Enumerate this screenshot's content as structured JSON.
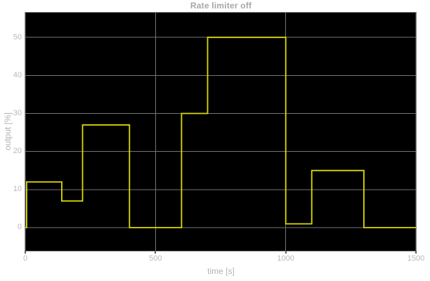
{
  "chart_data": {
    "type": "line",
    "line_style": "step-post",
    "title": "Rate limiter off",
    "xlabel": "time [s]",
    "ylabel": "output [%]",
    "xlim": [
      0,
      1500
    ],
    "ylim": [
      -6.1,
      56.5
    ],
    "xticks": [
      0,
      500,
      1000,
      1500
    ],
    "yticks": [
      0,
      10,
      20,
      30,
      40,
      50
    ],
    "grid": true,
    "legend": "none",
    "series": [
      {
        "name": "output",
        "color": "#dcdc00",
        "steps": [
          {
            "t": 0,
            "v": 0
          },
          {
            "t": 5,
            "v": 12
          },
          {
            "t": 140,
            "v": 7
          },
          {
            "t": 220,
            "v": 27
          },
          {
            "t": 400,
            "v": 0
          },
          {
            "t": 600,
            "v": 30
          },
          {
            "t": 700,
            "v": 50
          },
          {
            "t": 1000,
            "v": 1
          },
          {
            "t": 1100,
            "v": 15
          },
          {
            "t": 1300,
            "v": 0
          }
        ],
        "t_end": 1500
      }
    ],
    "colors": {
      "figure_background": "#ffffff",
      "plot_background": "#000000",
      "grid": "#757575",
      "axis_border": "#8a8a8a",
      "tick_label": "#b8b8b8",
      "axis_label": "#b3b3b3",
      "title": "#a6a6a6"
    }
  }
}
